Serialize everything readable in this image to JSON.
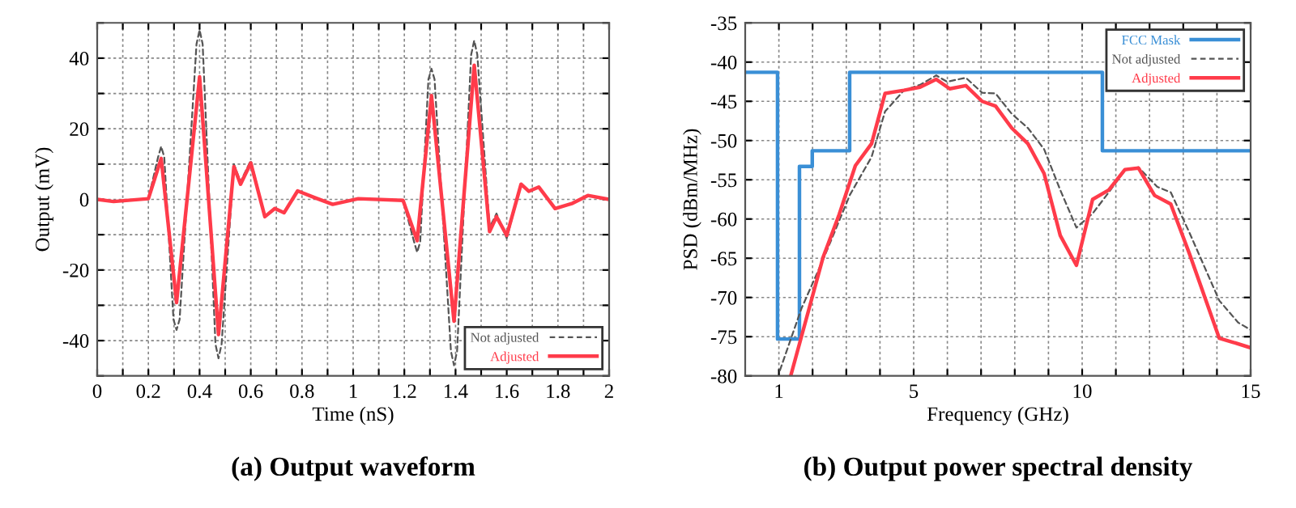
{
  "chart_data": [
    {
      "type": "line",
      "title": "(a) Output waveform",
      "xlabel": "Time (nS)",
      "ylabel": "Output (mV)",
      "xlim": [
        0,
        2
      ],
      "ylim": [
        -50,
        50
      ],
      "xticks": [
        0,
        {
          "value": 0.1,
          "label": null
        },
        0.2,
        {
          "value": 0.3,
          "label": null
        },
        0.4,
        {
          "value": 0.5,
          "label": null
        },
        0.6,
        {
          "value": 0.7,
          "label": null
        },
        0.8,
        {
          "value": 0.9,
          "label": null
        },
        1,
        {
          "value": 1.1,
          "label": null
        },
        1.2,
        {
          "value": 1.3,
          "label": null
        },
        1.4,
        {
          "value": 1.5,
          "label": null
        },
        1.6,
        {
          "value": 1.7,
          "label": null
        },
        1.8,
        {
          "value": 1.9,
          "label": null
        },
        2
      ],
      "yticks": [
        {
          "value": -50,
          "label": null
        },
        -40,
        {
          "value": -30,
          "label": null
        },
        -20,
        {
          "value": -10,
          "label": null
        },
        0,
        {
          "value": 10,
          "label": null
        },
        20,
        {
          "value": 30,
          "label": null
        },
        40,
        {
          "value": 50,
          "label": null
        }
      ],
      "grid": true,
      "legend": "bottom right",
      "series": [
        {
          "name": "Not adjusted",
          "color": "#555555",
          "line_style": "dashed",
          "x": [
            0,
            0.064,
            0.2,
            0.238,
            0.25,
            0.262,
            0.298,
            0.31,
            0.322,
            0.388,
            0.4,
            0.412,
            0.462,
            0.474,
            0.486,
            0.534,
            0.56,
            0.6,
            0.655,
            0.694,
            0.73,
            0.783,
            0.85,
            0.92,
            1.02,
            1.195,
            1.238,
            1.25,
            1.262,
            1.294,
            1.306,
            1.318,
            1.382,
            1.394,
            1.406,
            1.461,
            1.473,
            1.485,
            1.533,
            1.56,
            1.6,
            1.656,
            1.686,
            1.725,
            1.789,
            1.857,
            1.917,
            2
          ],
          "values": [
            0,
            -0.6,
            0.2,
            12,
            15,
            12,
            -34,
            -37,
            -34,
            44,
            48,
            44,
            -41,
            -45,
            -41,
            10,
            5,
            11,
            -4.9,
            -2.6,
            -3.8,
            2.4,
            0.5,
            -1.4,
            0.2,
            -0.3,
            -12,
            -15,
            -12,
            34,
            37,
            34,
            -43,
            -47,
            -43,
            41,
            45,
            41,
            -8,
            -4,
            -11,
            4.3,
            2.3,
            3.5,
            -2.6,
            -1.1,
            1.1,
            0
          ]
        },
        {
          "name": "Adjusted",
          "color": "#ff3b4a",
          "line_style": "solid",
          "x": [
            0,
            0.064,
            0.2,
            0.25,
            0.31,
            0.4,
            0.474,
            0.534,
            0.56,
            0.6,
            0.655,
            0.694,
            0.73,
            0.783,
            0.85,
            0.92,
            1.02,
            1.195,
            1.25,
            1.306,
            1.394,
            1.473,
            1.533,
            1.56,
            1.6,
            1.656,
            1.686,
            1.725,
            1.789,
            1.857,
            1.917,
            2
          ],
          "values": [
            0,
            -0.6,
            0.2,
            11.6,
            -29.2,
            34.7,
            -38.3,
            9.3,
            4.3,
            10.3,
            -4.9,
            -2.6,
            -3.8,
            2.4,
            0.5,
            -1.4,
            0.2,
            -0.3,
            -11.7,
            29.4,
            -34.5,
            38,
            -9.1,
            -4.9,
            -10.2,
            4.3,
            2.3,
            3.5,
            -2.6,
            -1.1,
            1.1,
            0
          ]
        }
      ]
    },
    {
      "type": "line",
      "title": "(b) Output power spectral density",
      "xlabel": "Frequency (GHz)",
      "ylabel": "PSD (dBm/MHz)",
      "xlim": [
        0,
        15
      ],
      "ylim": [
        -80,
        -35
      ],
      "xticks": [
        1,
        {
          "value": 2,
          "label": null
        },
        {
          "value": 3,
          "label": null
        },
        {
          "value": 4,
          "label": null
        },
        5,
        {
          "value": 6,
          "label": null
        },
        {
          "value": 7,
          "label": null
        },
        {
          "value": 8,
          "label": null
        },
        {
          "value": 9,
          "label": null
        },
        10,
        {
          "value": 11,
          "label": null
        },
        {
          "value": 12,
          "label": null
        },
        {
          "value": 13,
          "label": null
        },
        {
          "value": 14,
          "label": null
        },
        15
      ],
      "yticks": [
        -80,
        -75,
        -70,
        -65,
        -60,
        -55,
        -50,
        -45,
        -40,
        -35
      ],
      "grid": true,
      "legend": "top right",
      "series": [
        {
          "name": "FCC Mask",
          "type": "step",
          "color": "#3a8fd6",
          "line_style": "solid",
          "x": [
            0,
            0.96,
            1.61,
            1.99,
            3.1,
            10.6,
            15
          ],
          "values": [
            -41.3,
            -75.3,
            -53.3,
            -51.3,
            -41.3,
            -51.3,
            -51.3
          ]
        },
        {
          "name": "Not adjusted",
          "color": "#555555",
          "line_style": "dashed",
          "x": [
            1.03,
            1.67,
            2.31,
            3.11,
            3.75,
            4.15,
            4.71,
            5.19,
            5.67,
            5.99,
            6.55,
            7.03,
            7.43,
            7.91,
            8.39,
            8.87,
            9.35,
            9.83,
            10.31,
            10.79,
            11.27,
            11.67,
            12.23,
            12.63,
            13.19,
            14.07,
            14.63,
            14.99
          ],
          "values": [
            -79.3,
            -71.4,
            -65.2,
            -56.9,
            -52.1,
            -46.3,
            -43.6,
            -42.9,
            -41.7,
            -42.5,
            -42.0,
            -43.9,
            -44.0,
            -46.6,
            -48.4,
            -51.1,
            -56.3,
            -61.1,
            -59.3,
            -56.6,
            -53.8,
            -53.4,
            -55.9,
            -56.6,
            -61.8,
            -70.4,
            -73.2,
            -74.1
          ]
        },
        {
          "name": "Adjusted",
          "color": "#ff3b4a",
          "line_style": "solid",
          "x": [
            1.35,
            2.31,
            2.79,
            3.27,
            3.75,
            4.15,
            4.71,
            5.19,
            5.67,
            6.07,
            6.55,
            7.03,
            7.43,
            7.91,
            8.39,
            8.87,
            9.35,
            9.83,
            10.31,
            10.79,
            11.27,
            11.67,
            12.15,
            12.63,
            13.19,
            14.07,
            14.47,
            14.99
          ],
          "values": [
            -80.0,
            -64.9,
            -59.4,
            -53.2,
            -50.4,
            -44.0,
            -43.6,
            -43.2,
            -42.2,
            -43.4,
            -43.0,
            -45.0,
            -45.6,
            -48.4,
            -50.4,
            -54.2,
            -62.1,
            -65.9,
            -57.5,
            -56.3,
            -53.7,
            -53.5,
            -57.0,
            -58.1,
            -64.5,
            -75.2,
            -75.7,
            -76.4
          ]
        }
      ]
    }
  ]
}
